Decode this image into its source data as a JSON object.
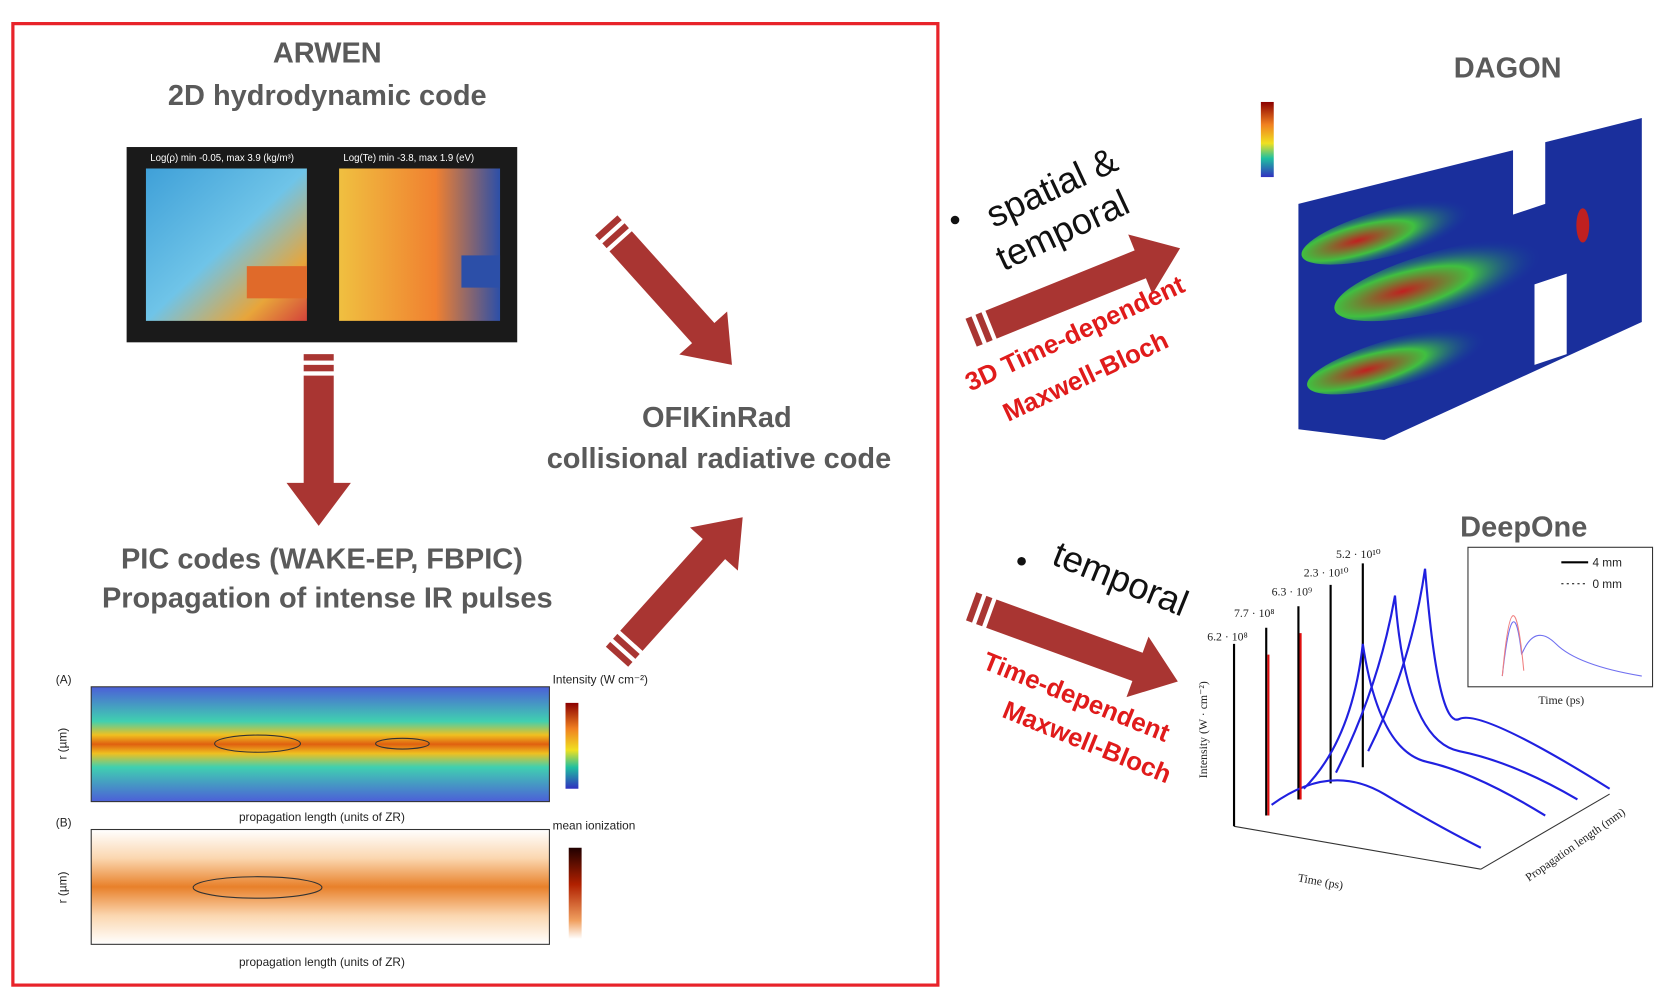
{
  "arwen": {
    "title": "ARWEN",
    "subtitle": "2D hydrodynamic code",
    "panels": [
      "Log(ρ)  min -0.05, max 3.9 (kg/m³)",
      "Log(Te)  min -3.8, max 1.9 (eV)"
    ]
  },
  "pic": {
    "title": "PIC codes (WAKE-EP, FBPIC)",
    "subtitle": "Propagation of intense IR pulses",
    "x_label": "propagation length (units of ZR)",
    "y_label": "r (µm)",
    "colorbar_a": "Intensity (W cm⁻²)",
    "colorbar_b": "mean ionization",
    "panel_a": "(A)",
    "panel_b": "(B)"
  },
  "ofikinrad": {
    "title": "OFIKinRad",
    "subtitle": "collisional radiative code"
  },
  "dagon": {
    "title": "DAGON",
    "bullet": [
      "spatial &",
      "temporal"
    ],
    "method": [
      "3D Time-dependent",
      "Maxwell-Bloch"
    ]
  },
  "deepone": {
    "title": "DeepOne",
    "bullet": [
      "temporal"
    ],
    "method": [
      "Time-dependent",
      "Maxwell-Bloch"
    ],
    "x_label": "Time (ps)",
    "y_label": "Intensity (W · cm⁻²)",
    "z_label": "Propagation length (mm)",
    "peaks": [
      "6.2 · 10⁸",
      "7.7 · 10⁸",
      "6.3 · 10⁹",
      "2.3 · 10¹⁰",
      "5.2 · 10¹⁰"
    ],
    "inset_legend": [
      "4 mm",
      "0 mm"
    ],
    "inset_x_label": "Time (ps)"
  }
}
